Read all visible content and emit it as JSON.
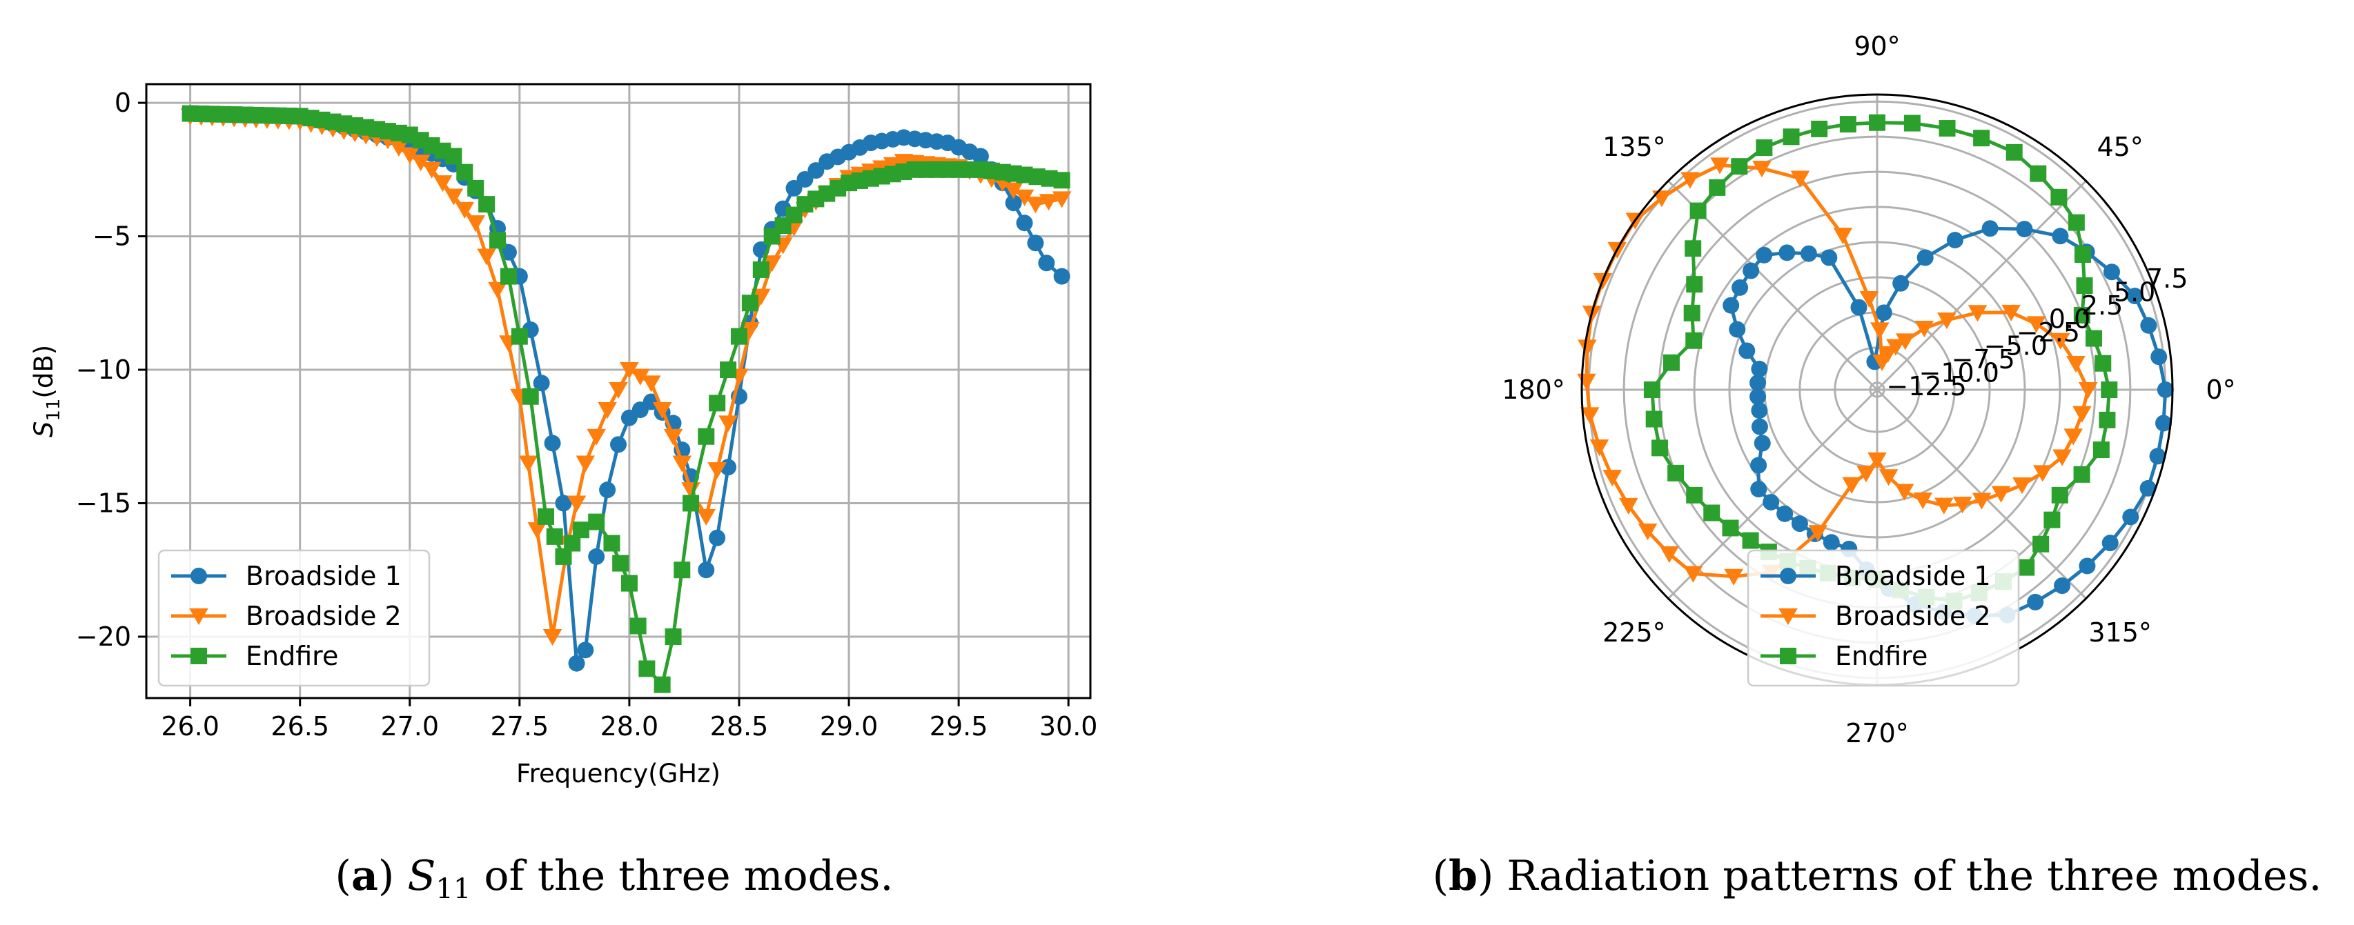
{
  "chart_data": [
    {
      "type": "line",
      "xlabel": "Frequency(GHz)",
      "ylabel": "S",
      "ylabel_sub": "11",
      "ylabel_unit": "(dB)",
      "xlim": [
        25.8,
        30.1
      ],
      "ylim": [
        -22.3,
        0.7
      ],
      "xticks": [
        26.0,
        26.5,
        27.0,
        27.5,
        28.0,
        28.5,
        29.0,
        29.5,
        30.0
      ],
      "xtick_labels": [
        "26.0",
        "26.5",
        "27.0",
        "27.5",
        "28.0",
        "28.5",
        "29.0",
        "29.5",
        "30.0"
      ],
      "yticks": [
        0,
        -5,
        -10,
        -15,
        -20
      ],
      "ytick_labels": [
        "0",
        "−5",
        "−10",
        "−15",
        "−20"
      ],
      "grid": true,
      "legend": "lower left",
      "caption": {
        "letter": "a",
        "sym": "S",
        "sub": "11",
        "text": "of the three modes."
      },
      "series": [
        {
          "name": "Broadside 1",
          "color": "#1f77b4",
          "marker": "circle",
          "points": [
            [
              26.0,
              -0.4
            ],
            [
              26.5,
              -0.5
            ],
            [
              27.0,
              -1.5
            ],
            [
              27.2,
              -2.3
            ],
            [
              27.35,
              -3.8
            ],
            [
              27.5,
              -6.5
            ],
            [
              27.6,
              -10.5
            ],
            [
              27.7,
              -15.0
            ],
            [
              27.76,
              -21.0
            ],
            [
              27.8,
              -20.5
            ],
            [
              27.85,
              -17.0
            ],
            [
              27.9,
              -14.5
            ],
            [
              27.95,
              -12.8
            ],
            [
              28.0,
              -11.8
            ],
            [
              28.1,
              -11.2
            ],
            [
              28.2,
              -12.0
            ],
            [
              28.28,
              -14.0
            ],
            [
              28.35,
              -17.5
            ],
            [
              28.4,
              -16.3
            ],
            [
              28.5,
              -11.0
            ],
            [
              28.6,
              -5.5
            ],
            [
              28.75,
              -3.2
            ],
            [
              28.9,
              -2.2
            ],
            [
              29.1,
              -1.5
            ],
            [
              29.25,
              -1.3
            ],
            [
              29.45,
              -1.5
            ],
            [
              29.6,
              -2.0
            ],
            [
              29.7,
              -3.0
            ],
            [
              29.8,
              -4.5
            ],
            [
              29.9,
              -6.0
            ],
            [
              29.97,
              -6.5
            ]
          ]
        },
        {
          "name": "Broadside 2",
          "color": "#ff7f0e",
          "marker": "triangle-down",
          "points": [
            [
              26.0,
              -0.5
            ],
            [
              26.5,
              -0.7
            ],
            [
              26.9,
              -1.4
            ],
            [
              27.1,
              -2.5
            ],
            [
              27.3,
              -4.5
            ],
            [
              27.4,
              -7.0
            ],
            [
              27.5,
              -11.0
            ],
            [
              27.58,
              -16.0
            ],
            [
              27.65,
              -20.0
            ],
            [
              27.72,
              -16.5
            ],
            [
              27.8,
              -13.5
            ],
            [
              27.9,
              -11.5
            ],
            [
              28.0,
              -10.0
            ],
            [
              28.1,
              -10.5
            ],
            [
              28.2,
              -12.5
            ],
            [
              28.28,
              -14.5
            ],
            [
              28.35,
              -15.5
            ],
            [
              28.45,
              -12.0
            ],
            [
              28.55,
              -8.5
            ],
            [
              28.65,
              -6.0
            ],
            [
              28.8,
              -4.0
            ],
            [
              29.0,
              -2.8
            ],
            [
              29.25,
              -2.2
            ],
            [
              29.5,
              -2.4
            ],
            [
              29.7,
              -3.0
            ],
            [
              29.85,
              -3.8
            ],
            [
              29.97,
              -3.6
            ]
          ]
        },
        {
          "name": "Endfire",
          "color": "#2ca02c",
          "marker": "square",
          "points": [
            [
              26.0,
              -0.4
            ],
            [
              26.5,
              -0.5
            ],
            [
              27.0,
              -1.2
            ],
            [
              27.2,
              -2.0
            ],
            [
              27.35,
              -3.8
            ],
            [
              27.45,
              -6.5
            ],
            [
              27.55,
              -11.0
            ],
            [
              27.62,
              -15.5
            ],
            [
              27.7,
              -17.0
            ],
            [
              27.78,
              -16.0
            ],
            [
              27.85,
              -15.7
            ],
            [
              27.92,
              -16.5
            ],
            [
              28.0,
              -18.0
            ],
            [
              28.08,
              -21.2
            ],
            [
              28.15,
              -21.8
            ],
            [
              28.2,
              -20.0
            ],
            [
              28.28,
              -15.0
            ],
            [
              28.35,
              -12.5
            ],
            [
              28.45,
              -10.0
            ],
            [
              28.55,
              -7.5
            ],
            [
              28.65,
              -5.0
            ],
            [
              28.8,
              -3.8
            ],
            [
              29.0,
              -3.0
            ],
            [
              29.3,
              -2.5
            ],
            [
              29.6,
              -2.5
            ],
            [
              29.8,
              -2.7
            ],
            [
              29.97,
              -2.9
            ]
          ]
        }
      ]
    },
    {
      "type": "polar",
      "rlim": [
        -13,
        8
      ],
      "rticks": [
        -12.5,
        -10.0,
        -7.5,
        -5.0,
        -2.5,
        0.0,
        2.5,
        5.0,
        7.5
      ],
      "rtick_labels": [
        "−12.5",
        "−10.0",
        "−7.5",
        "−5.0",
        "−2.5",
        "0.0",
        "2.5",
        "5.0",
        "7.5"
      ],
      "angle_labels": [
        "0°",
        "45°",
        "90°",
        "135°",
        "180°",
        "225°",
        "270°",
        "315°"
      ],
      "legend": "lower center",
      "caption": {
        "letter": "b",
        "text": "Radiation patterns of the three modes."
      },
      "series": [
        {
          "name": "Broadside 1",
          "color": "#1f77b4",
          "marker": "circle",
          "points": [
            [
              0,
              7.5
            ],
            [
              20,
              6.5
            ],
            [
              40,
              4.0
            ],
            [
              55,
              1.0
            ],
            [
              70,
              -3.0
            ],
            [
              85,
              -7.5
            ],
            [
              95,
              -11.0
            ],
            [
              110,
              -3.0
            ],
            [
              130,
              -0.5
            ],
            [
              150,
              -1.0
            ],
            [
              170,
              -4.5
            ],
            [
              190,
              -4.5
            ],
            [
              205,
              -4.0
            ],
            [
              220,
              -2.0
            ],
            [
              240,
              -2.0
            ],
            [
              260,
              -1.5
            ],
            [
              280,
              2.5
            ],
            [
              300,
              5.5
            ],
            [
              320,
              6.5
            ],
            [
              340,
              7.5
            ]
          ]
        },
        {
          "name": "Broadside 2",
          "color": "#ff7f0e",
          "marker": "triangle-down",
          "points": [
            [
              0,
              2.0
            ],
            [
              15,
              0.5
            ],
            [
              30,
              -2.0
            ],
            [
              45,
              -6.0
            ],
            [
              60,
              -9.0
            ],
            [
              80,
              -11.0
            ],
            [
              95,
              -6.5
            ],
            [
              110,
              3.0
            ],
            [
              125,
              6.5
            ],
            [
              145,
              8.0
            ],
            [
              165,
              8.0
            ],
            [
              185,
              7.5
            ],
            [
              205,
              6.5
            ],
            [
              225,
              5.5
            ],
            [
              240,
              2.0
            ],
            [
              255,
              -6.0
            ],
            [
              270,
              -8.0
            ],
            [
              285,
              -5.5
            ],
            [
              300,
              -3.5
            ],
            [
              320,
              -1.5
            ],
            [
              340,
              1.0
            ]
          ]
        },
        {
          "name": "Endfire",
          "color": "#2ca02c",
          "marker": "square",
          "points": [
            [
              0,
              3.5
            ],
            [
              20,
              2.5
            ],
            [
              40,
              5.5
            ],
            [
              60,
              6.5
            ],
            [
              90,
              6.0
            ],
            [
              115,
              6.0
            ],
            [
              135,
              5.0
            ],
            [
              150,
              2.0
            ],
            [
              165,
              0.5
            ],
            [
              180,
              3.0
            ],
            [
              195,
              3.0
            ],
            [
              210,
              2.0
            ],
            [
              230,
              1.0
            ],
            [
              255,
              0.5
            ],
            [
              270,
              0.5
            ],
            [
              290,
              3.0
            ],
            [
              310,
              3.5
            ],
            [
              330,
              2.0
            ],
            [
              345,
              3.5
            ]
          ]
        }
      ]
    }
  ]
}
